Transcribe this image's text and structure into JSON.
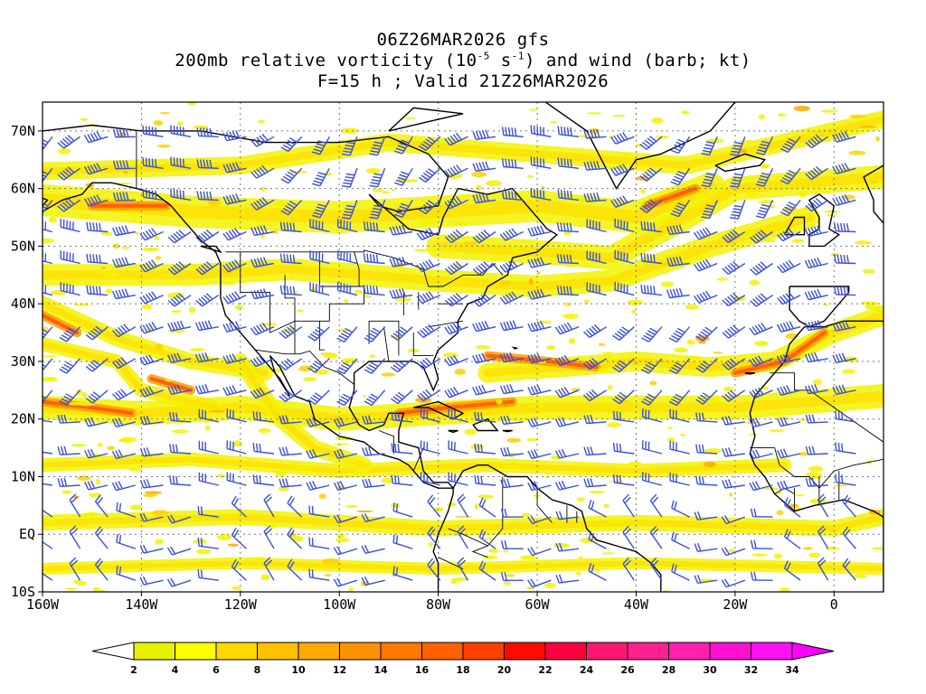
{
  "title": {
    "line1": "06Z26MAR2026 gfs",
    "line2_pre": "200mb relative vorticity (10",
    "line2_exp1": "-5",
    "line2_mid": " s",
    "line2_exp2": "-1",
    "line2_post": ") and wind (barb; kt)",
    "line3": "F=15 h ; Valid 21Z26MAR2026"
  },
  "map": {
    "lon_range": [
      -160,
      10
    ],
    "lat_range": [
      -10,
      75
    ],
    "lat_labels": [
      "70N",
      "60N",
      "50N",
      "40N",
      "30N",
      "20N",
      "10N",
      "EQ",
      "10S"
    ],
    "lat_values": [
      70,
      60,
      50,
      40,
      30,
      20,
      10,
      0,
      -10
    ],
    "lon_labels": [
      "160W",
      "140W",
      "120W",
      "100W",
      "80W",
      "60W",
      "40W",
      "20W",
      "0"
    ],
    "lon_values": [
      -160,
      -140,
      -120,
      -100,
      -80,
      -60,
      -40,
      -20,
      0
    ],
    "barb_color": "#3a4fe0",
    "coast_color": "#000000"
  },
  "colorbar": {
    "labels": [
      "2",
      "4",
      "6",
      "8",
      "10",
      "12",
      "14",
      "16",
      "18",
      "20",
      "22",
      "24",
      "26",
      "28",
      "30",
      "32",
      "34"
    ],
    "colors": [
      "#e6f000",
      "#ffff00",
      "#ffd800",
      "#ffc000",
      "#ffaa00",
      "#ff9200",
      "#ff7800",
      "#ff6000",
      "#ff4000",
      "#ff0a00",
      "#ff0040",
      "#ff1870",
      "#ff2090",
      "#ff20b0",
      "#ff10d0",
      "#ff10f0"
    ],
    "under_color": "#ffffff",
    "over_color": "#ff00ff"
  }
}
